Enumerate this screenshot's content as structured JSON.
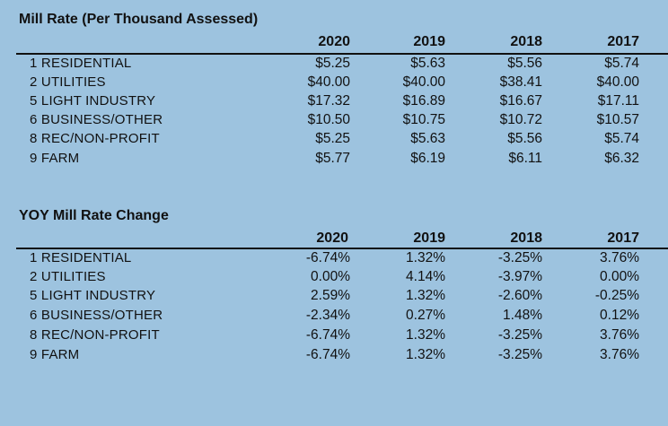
{
  "mill": {
    "title": "Mill Rate (Per Thousand Assessed)",
    "years": [
      "2020",
      "2019",
      "2018",
      "2017"
    ],
    "rows": [
      {
        "label": "1 RESIDENTIAL",
        "values": [
          "$5.25",
          "$5.63",
          "$5.56",
          "$5.74"
        ]
      },
      {
        "label": "2 UTILITIES",
        "values": [
          "$40.00",
          "$40.00",
          "$38.41",
          "$40.00"
        ]
      },
      {
        "label": "5 LIGHT INDUSTRY",
        "values": [
          "$17.32",
          "$16.89",
          "$16.67",
          "$17.11"
        ]
      },
      {
        "label": "6 BUSINESS/OTHER",
        "values": [
          "$10.50",
          "$10.75",
          "$10.72",
          "$10.57"
        ]
      },
      {
        "label": "8 REC/NON-PROFIT",
        "values": [
          "$5.25",
          "$5.63",
          "$5.56",
          "$5.74"
        ]
      },
      {
        "label": "9 FARM",
        "values": [
          "$5.77",
          "$6.19",
          "$6.11",
          "$6.32"
        ]
      }
    ]
  },
  "yoy": {
    "title": "YOY Mill Rate Change",
    "years": [
      "2020",
      "2019",
      "2018",
      "2017"
    ],
    "rows": [
      {
        "label": "1 RESIDENTIAL",
        "values": [
          "-6.74%",
          "1.32%",
          "-3.25%",
          "3.76%"
        ]
      },
      {
        "label": "2 UTILITIES",
        "values": [
          "0.00%",
          "4.14%",
          "-3.97%",
          "0.00%"
        ]
      },
      {
        "label": "5 LIGHT INDUSTRY",
        "values": [
          "2.59%",
          "1.32%",
          "-2.60%",
          "-0.25%"
        ]
      },
      {
        "label": "6 BUSINESS/OTHER",
        "values": [
          "-2.34%",
          "0.27%",
          "1.48%",
          "0.12%"
        ]
      },
      {
        "label": "8 REC/NON-PROFIT",
        "values": [
          "-6.74%",
          "1.32%",
          "-3.25%",
          "3.76%"
        ]
      },
      {
        "label": "9 FARM",
        "values": [
          "-6.74%",
          "1.32%",
          "-3.25%",
          "3.76%"
        ]
      }
    ]
  }
}
